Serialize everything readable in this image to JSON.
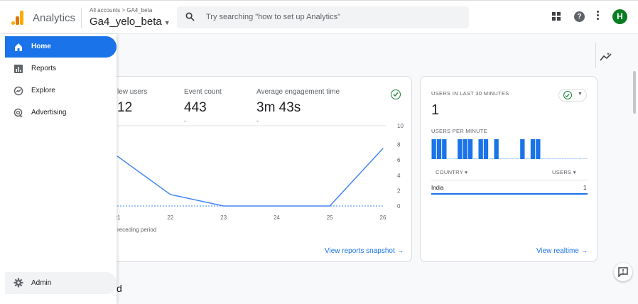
{
  "header": {
    "app_name": "Analytics",
    "breadcrumb": "All accounts > GA4_beta",
    "property": "Ga4_yelo_beta",
    "search_placeholder": "Try searching \"how to set up Analytics\"",
    "avatar_letter": "H"
  },
  "sidebar": {
    "items": [
      {
        "label": "Home",
        "icon": "home-icon"
      },
      {
        "label": "Reports",
        "icon": "reports-icon"
      },
      {
        "label": "Explore",
        "icon": "explore-icon"
      },
      {
        "label": "Advertising",
        "icon": "advertising-icon"
      }
    ],
    "admin": {
      "label": "Admin",
      "icon": "gear-icon"
    }
  },
  "overview": {
    "metrics": [
      {
        "label": "New users",
        "visible_label": "lew users",
        "value": "12",
        "visible_value": "12"
      },
      {
        "label": "Event count",
        "value": "443",
        "sub": "-"
      },
      {
        "label": "Average engagement time",
        "value": "3m 43s",
        "sub": "-"
      }
    ],
    "legend": "receding period",
    "link": "View reports snapshot"
  },
  "chart_data": {
    "type": "line",
    "x": [
      "21",
      "22",
      "23",
      "24",
      "25",
      "26"
    ],
    "series": [
      {
        "values": [
          6.5,
          1.5,
          0,
          0,
          0,
          7.5
        ],
        "color": "#4285f4"
      }
    ],
    "y_ticks": [
      "10",
      "8",
      "6",
      "4",
      "2",
      "0"
    ],
    "ylim": [
      0,
      10
    ],
    "y_axis": "right"
  },
  "realtime": {
    "title": "USERS IN LAST 30 MINUTES",
    "value": "1",
    "per_minute_label": "USERS PER MINUTE",
    "bar_color": "#1a73e8",
    "per_minute_values": [
      1,
      1,
      1,
      0,
      0,
      1,
      1,
      1,
      0,
      1,
      1,
      0,
      1,
      0,
      0,
      0,
      0,
      1,
      0,
      1,
      1,
      0,
      0,
      0,
      0,
      0,
      0,
      0,
      0,
      0
    ],
    "col_country": "COUNTRY",
    "col_users": "USERS",
    "rows": [
      {
        "country": "India",
        "users": "1"
      }
    ],
    "link": "View realtime"
  },
  "bottom": {
    "text": "d"
  },
  "colors": {
    "accent": "#1a73e8",
    "success": "#188038",
    "avatar": "#0a7d24"
  }
}
